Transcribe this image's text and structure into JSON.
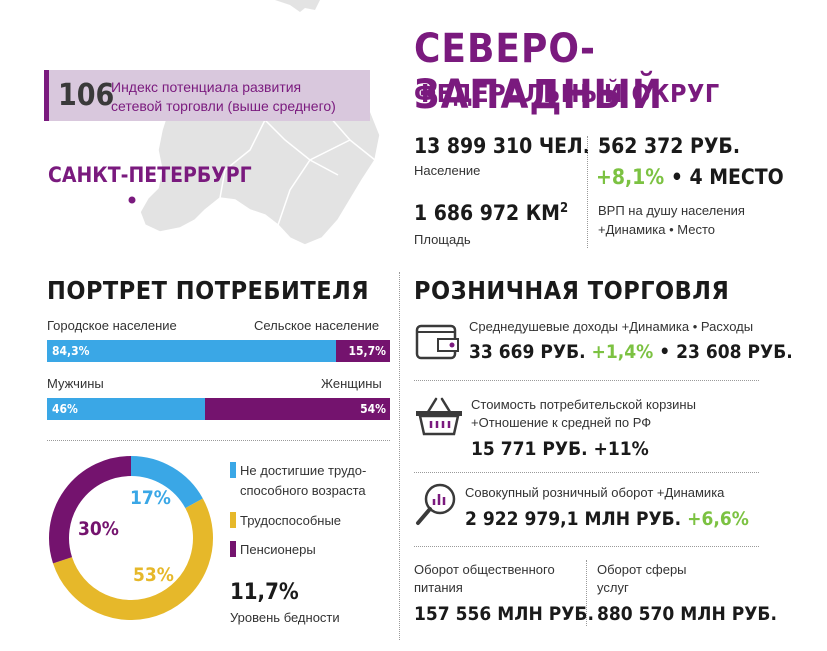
{
  "region": {
    "title_line1": "СЕВЕРО-ЗАПАДНЫЙ",
    "title_line2": "ФЕДЕРАЛЬНЫЙ ОКРУГ",
    "capital": "САНКТ-ПЕТЕРБУРГ"
  },
  "index_box": {
    "value": "106",
    "text_line1": "Индекс потенциала развития",
    "text_line2": "сетевой торговли (выше среднего)"
  },
  "stats": {
    "population_value": "13 899 310 ЧЕЛ.",
    "population_label": "Население",
    "area_value": "1 686 972 КМ",
    "area_sup": "2",
    "area_label": "Площадь",
    "grp_value": "562 372 РУБ.",
    "grp_dynamic": "+8,1%",
    "grp_bullet": "•",
    "grp_place": "4 МЕСТО",
    "grp_label_line1": "ВРП на душу населения",
    "grp_label_line2": "+Динамика • Место"
  },
  "portrait": {
    "title": "ПОРТРЕТ ПОТРЕБИТЕЛЯ",
    "urban_label": "Городское население",
    "rural_label": "Сельское население",
    "urban_pct": "84,3%",
    "rural_pct": "15,7%",
    "urban_value": 84.3,
    "rural_value": 15.7,
    "men_label": "Мужчины",
    "women_label": "Женщины",
    "men_pct": "46%",
    "women_pct": "54%",
    "men_value": 46,
    "women_value": 54
  },
  "age_structure": {
    "segments": [
      {
        "name": "Не достигшие трудо-способного возраста",
        "label": "17%",
        "value": 17,
        "color": "#3aa7e6"
      },
      {
        "name": "Трудоспособные",
        "label": "53%",
        "value": 53,
        "color": "#e6b82a"
      },
      {
        "name": "Пенсионеры",
        "label": "30%",
        "value": 30,
        "color": "#74136e"
      }
    ],
    "legend_1_line1": "Не достигшие трудо-",
    "legend_1_line2": "способного возраста",
    "legend_2": "Трудоспособные",
    "legend_3": "Пенсионеры",
    "poverty_value": "11,7%",
    "poverty_label": "Уровень бедности"
  },
  "retail": {
    "title": "РОЗНИЧНАЯ ТОРГОВЛЯ",
    "income_label": "Среднедушевые доходы",
    "income_label_extra": "+Динамика • Расходы",
    "income_value": "33 669 РУБ.",
    "income_dynamic": "+1,4%",
    "income_bullet": "•",
    "income_expenses": "23 608 РУБ.",
    "basket_label_line1": "Стоимость потребительской корзины",
    "basket_label_line2": "+Отношение к средней по РФ",
    "basket_value": "15 771 РУБ.",
    "basket_ratio": "+11%",
    "turnover_label": "Совокупный розничный оборот",
    "turnover_label_extra": "+Динамика",
    "turnover_value": "2 922 979,1 МЛН РУБ.",
    "turnover_dynamic": "+6,6%",
    "catering_label_line1": "Оборот общественного",
    "catering_label_line2": "питания",
    "catering_value": "157 556 МЛН РУБ.",
    "services_label_line1": "Оборот сферы",
    "services_label_line2": "услуг",
    "services_value": "880 570 МЛН РУБ."
  },
  "icons": [
    "map-region-graphic",
    "wallet-icon",
    "basket-icon",
    "magnifier-chart-icon"
  ],
  "colors": {
    "purple": "#7a1a7e",
    "blue": "#3aa7e6",
    "yellow": "#e6b82a",
    "green": "#7cc242",
    "index_box_bg": "#d9c8dd"
  }
}
